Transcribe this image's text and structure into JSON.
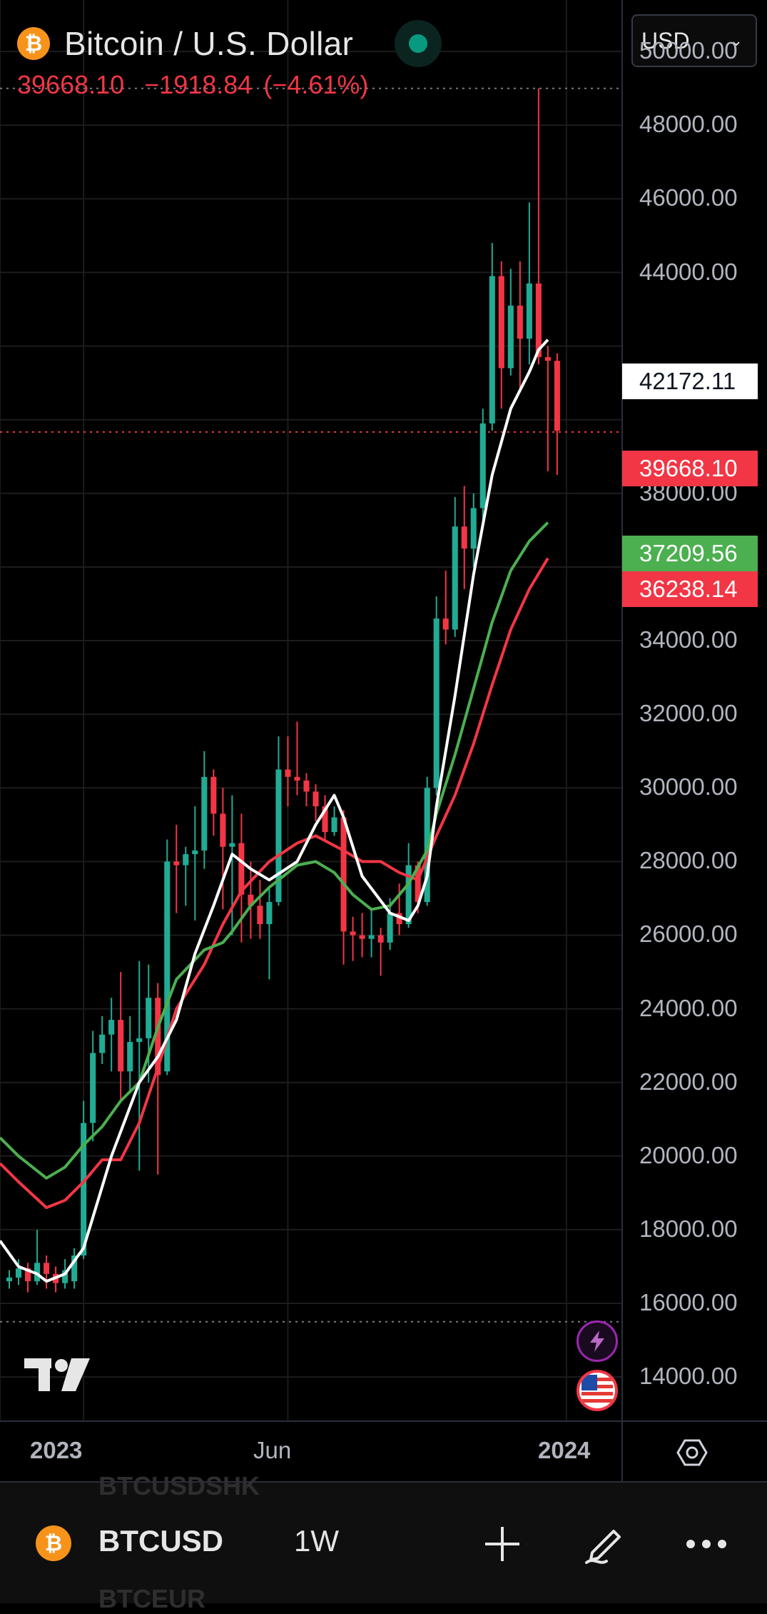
{
  "header": {
    "coin_symbol": "₿",
    "title": "Bitcoin / U.S. Dollar",
    "last": "39668.10",
    "change": "−1918.84",
    "change_pct": "(−4.61%)"
  },
  "currency_select": {
    "value": "USD"
  },
  "price_axis": {
    "ticks": [
      "50000.00",
      "48000.00",
      "46000.00",
      "44000.00",
      "38000.00",
      "34000.00",
      "32000.00",
      "30000.00",
      "28000.00",
      "26000.00",
      "24000.00",
      "22000.00",
      "20000.00",
      "18000.00",
      "16000.00",
      "14000.00"
    ],
    "labels": {
      "ema_white": "42172.11",
      "last_price": "39668.10",
      "ema_green": "37209.56",
      "ema_red": "36238.14"
    }
  },
  "time_axis": {
    "ticks": [
      "2023",
      "Jun",
      "2024"
    ]
  },
  "colors": {
    "up": "#22ab94",
    "down": "#f23645",
    "ema_white": "#ffffff",
    "ema_green": "#4caf50",
    "ema_red": "#f23645",
    "grid": "#1c1c1c",
    "background": "#000000"
  },
  "chart_data": {
    "type": "candlestick",
    "interval": "1W",
    "y_range": [
      12800,
      51400
    ],
    "x_range_weeks": [
      -9,
      58
    ],
    "x_ticks": [
      {
        "label": "2023",
        "week": 0
      },
      {
        "label": "Jun",
        "week": 22
      },
      {
        "label": "2024",
        "week": 52
      }
    ],
    "candles": [
      [
        16600,
        16900,
        16400,
        16700
      ],
      [
        16700,
        17200,
        16500,
        16950
      ],
      [
        16950,
        17100,
        16300,
        16600
      ],
      [
        16600,
        18000,
        16500,
        17100
      ],
      [
        17100,
        17300,
        16400,
        16800
      ],
      [
        16800,
        17000,
        16300,
        16550
      ],
      [
        16550,
        17200,
        16400,
        16900
      ],
      [
        16600,
        17500,
        16400,
        17300
      ],
      [
        17300,
        21500,
        17200,
        20900
      ],
      [
        20900,
        23400,
        20400,
        22800
      ],
      [
        22800,
        23800,
        22500,
        23300
      ],
      [
        23300,
        24300,
        22300,
        23700
      ],
      [
        23700,
        25000,
        21500,
        22300
      ],
      [
        22300,
        23800,
        21700,
        23100
      ],
      [
        23100,
        25300,
        19600,
        23200
      ],
      [
        23200,
        25200,
        22000,
        24300
      ],
      [
        24300,
        24700,
        19500,
        22200
      ],
      [
        22300,
        28600,
        22200,
        28000
      ],
      [
        28000,
        29000,
        26600,
        27900
      ],
      [
        27900,
        28400,
        26800,
        28200
      ],
      [
        28200,
        29500,
        26400,
        28300
      ],
      [
        28300,
        31000,
        27800,
        30300
      ],
      [
        30300,
        30500,
        28700,
        29300
      ],
      [
        29300,
        30000,
        26700,
        28400
      ],
      [
        28400,
        29800,
        26000,
        28500
      ],
      [
        28500,
        29300,
        25800,
        27100
      ],
      [
        27100,
        28000,
        25900,
        26800
      ],
      [
        26800,
        27500,
        25900,
        26300
      ],
      [
        26300,
        27300,
        24800,
        26900
      ],
      [
        26900,
        31400,
        26800,
        30500
      ],
      [
        30500,
        31400,
        29500,
        30300
      ],
      [
        30300,
        31800,
        29800,
        30200
      ],
      [
        30200,
        30400,
        29500,
        29900
      ],
      [
        29900,
        30100,
        29100,
        29500
      ],
      [
        29500,
        29800,
        28600,
        28800
      ],
      [
        28800,
        29500,
        28700,
        29200
      ],
      [
        29200,
        29400,
        25200,
        26100
      ],
      [
        26100,
        26500,
        25300,
        26000
      ],
      [
        26000,
        26600,
        25400,
        25900
      ],
      [
        25900,
        26700,
        25400,
        26000
      ],
      [
        26000,
        26200,
        24900,
        25800
      ],
      [
        25800,
        27000,
        25600,
        26600
      ],
      [
        26600,
        27400,
        26000,
        26300
      ],
      [
        26300,
        28500,
        26200,
        27900
      ],
      [
        27900,
        28000,
        26600,
        26900
      ],
      [
        26900,
        30300,
        26800,
        30000
      ],
      [
        30000,
        35200,
        29800,
        34600
      ],
      [
        34600,
        35900,
        33900,
        34300
      ],
      [
        34300,
        37900,
        34100,
        37100
      ],
      [
        37100,
        38200,
        35400,
        36500
      ],
      [
        36500,
        38000,
        36000,
        37600
      ],
      [
        37600,
        40300,
        37200,
        39900
      ],
      [
        39900,
        44800,
        39700,
        43900
      ],
      [
        43900,
        44300,
        40300,
        41400
      ],
      [
        41400,
        44100,
        41200,
        43100
      ],
      [
        43100,
        44300,
        40800,
        42200
      ],
      [
        42200,
        45900,
        41500,
        43700
      ],
      [
        43700,
        49000,
        41500,
        41700
      ],
      [
        41700,
        42000,
        38600,
        41600
      ],
      [
        41600,
        41800,
        38500,
        39700
      ]
    ],
    "ema_white": [
      [
        -9,
        17700
      ],
      [
        -7,
        17000
      ],
      [
        -5,
        16800
      ],
      [
        -4,
        16600
      ],
      [
        -2,
        16800
      ],
      [
        0,
        17500
      ],
      [
        3,
        20000
      ],
      [
        6,
        22000
      ],
      [
        8,
        22700
      ],
      [
        10,
        23700
      ],
      [
        12,
        25500
      ],
      [
        14,
        26800
      ],
      [
        16,
        28200
      ],
      [
        18,
        27800
      ],
      [
        20,
        27500
      ],
      [
        23,
        28000
      ],
      [
        25,
        29000
      ],
      [
        27,
        29800
      ],
      [
        28,
        29200
      ],
      [
        30,
        27600
      ],
      [
        33,
        26600
      ],
      [
        35,
        26400
      ],
      [
        36,
        26800
      ],
      [
        37,
        27600
      ],
      [
        38,
        29500
      ],
      [
        40,
        32500
      ],
      [
        42,
        35800
      ],
      [
        44,
        38500
      ],
      [
        46,
        40300
      ],
      [
        48,
        41300
      ],
      [
        49,
        41900
      ],
      [
        50,
        42172
      ]
    ],
    "ema_green": [
      [
        -9,
        20500
      ],
      [
        -7,
        20000
      ],
      [
        -4,
        19400
      ],
      [
        -2,
        19700
      ],
      [
        0,
        20300
      ],
      [
        2,
        20800
      ],
      [
        4,
        21500
      ],
      [
        6,
        22000
      ],
      [
        8,
        23500
      ],
      [
        10,
        24800
      ],
      [
        13,
        25600
      ],
      [
        15,
        25800
      ],
      [
        16,
        26100
      ],
      [
        18,
        26800
      ],
      [
        20,
        27300
      ],
      [
        23,
        27900
      ],
      [
        25,
        28000
      ],
      [
        27,
        27700
      ],
      [
        29,
        27100
      ],
      [
        31,
        26700
      ],
      [
        33,
        26800
      ],
      [
        35,
        27400
      ],
      [
        37,
        28300
      ],
      [
        38,
        29300
      ],
      [
        40,
        30900
      ],
      [
        42,
        32700
      ],
      [
        44,
        34500
      ],
      [
        46,
        35900
      ],
      [
        48,
        36700
      ],
      [
        50,
        37210
      ]
    ],
    "ema_red": [
      [
        -9,
        19800
      ],
      [
        -7,
        19300
      ],
      [
        -4,
        18600
      ],
      [
        -2,
        18800
      ],
      [
        0,
        19300
      ],
      [
        2,
        19900
      ],
      [
        4,
        19900
      ],
      [
        6,
        20900
      ],
      [
        8,
        22400
      ],
      [
        10,
        24000
      ],
      [
        13,
        25200
      ],
      [
        15,
        26300
      ],
      [
        17,
        27200
      ],
      [
        20,
        28000
      ],
      [
        23,
        28500
      ],
      [
        25,
        28700
      ],
      [
        28,
        28300
      ],
      [
        30,
        28000
      ],
      [
        32,
        28000
      ],
      [
        34,
        27700
      ],
      [
        36,
        27500
      ],
      [
        37,
        28100
      ],
      [
        38,
        28700
      ],
      [
        40,
        29800
      ],
      [
        42,
        31200
      ],
      [
        44,
        32800
      ],
      [
        46,
        34300
      ],
      [
        48,
        35400
      ],
      [
        50,
        36238
      ]
    ],
    "last_price": 39668.1,
    "ath_line": 49000,
    "low_line": 15500
  },
  "bottom_bar": {
    "coin_symbol": "₿",
    "symbol": "BTCUSD",
    "interval": "1W",
    "ghost_above": "BTCUSDSHK",
    "ghost_below": "BTCEUR"
  },
  "watermark": "TV",
  "icons": [
    "status-dot-icon",
    "chevron-down-icon",
    "lightning-icon",
    "us-flag-icon",
    "settings-gear-icon",
    "plus-icon",
    "pen-icon",
    "more-icon"
  ]
}
